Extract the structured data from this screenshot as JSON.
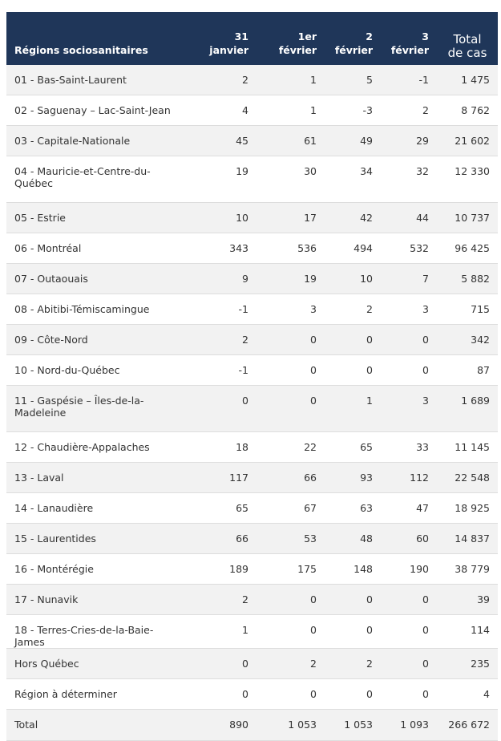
{
  "table": {
    "headers": {
      "region": "Régions sociosanitaires",
      "col1": [
        "31",
        "janvier"
      ],
      "col2": [
        "1er",
        "février"
      ],
      "col3": [
        "2",
        "février"
      ],
      "col4": [
        "3",
        "février"
      ],
      "total": [
        "Total",
        "de cas"
      ]
    },
    "rows": [
      {
        "region": "01 - Bas-Saint-Laurent",
        "v1": "2",
        "v2": "1",
        "v3": "5",
        "v4": "-1",
        "total": "1 475"
      },
      {
        "region": "02 - Saguenay – Lac-Saint-Jean",
        "v1": "4",
        "v2": "1",
        "v3": "-3",
        "v4": "2",
        "total": "8 762"
      },
      {
        "region": "03 - Capitale-Nationale",
        "v1": "45",
        "v2": "61",
        "v3": "49",
        "v4": "29",
        "total": "21 602"
      },
      {
        "region": "04 - Mauricie-et-Centre-du-Québec",
        "v1": "19",
        "v2": "30",
        "v3": "34",
        "v4": "32",
        "total": "12 330"
      },
      {
        "region": "05 - Estrie",
        "v1": "10",
        "v2": "17",
        "v3": "42",
        "v4": "44",
        "total": "10 737"
      },
      {
        "region": "06 - Montréal",
        "v1": "343",
        "v2": "536",
        "v3": "494",
        "v4": "532",
        "total": "96 425"
      },
      {
        "region": "07 - Outaouais",
        "v1": "9",
        "v2": "19",
        "v3": "10",
        "v4": "7",
        "total": "5 882"
      },
      {
        "region": "08 - Abitibi-Témiscamingue",
        "v1": "-1",
        "v2": "3",
        "v3": "2",
        "v4": "3",
        "total": "715"
      },
      {
        "region": "09 - Côte-Nord",
        "v1": "2",
        "v2": "0",
        "v3": "0",
        "v4": "0",
        "total": "342"
      },
      {
        "region": "10 - Nord-du-Québec",
        "v1": "-1",
        "v2": "0",
        "v3": "0",
        "v4": "0",
        "total": "87"
      },
      {
        "region": "11 - Gaspésie – Îles-de-la-Madeleine",
        "v1": "0",
        "v2": "0",
        "v3": "1",
        "v4": "3",
        "total": "1 689"
      },
      {
        "region": "12 - Chaudière-Appalaches",
        "v1": "18",
        "v2": "22",
        "v3": "65",
        "v4": "33",
        "total": "11 145"
      },
      {
        "region": "13 - Laval",
        "v1": "117",
        "v2": "66",
        "v3": "93",
        "v4": "112",
        "total": "22 548"
      },
      {
        "region": "14 - Lanaudière",
        "v1": "65",
        "v2": "67",
        "v3": "63",
        "v4": "47",
        "total": "18 925"
      },
      {
        "region": "15 - Laurentides",
        "v1": "66",
        "v2": "53",
        "v3": "48",
        "v4": "60",
        "total": "14 837"
      },
      {
        "region": "16 - Montérégie",
        "v1": "189",
        "v2": "175",
        "v3": "148",
        "v4": "190",
        "total": "38 779"
      },
      {
        "region": "17 - Nunavik",
        "v1": "2",
        "v2": "0",
        "v3": "0",
        "v4": "0",
        "total": "39"
      },
      {
        "region": "18 - Terres-Cries-de-la-Baie-James",
        "v1": "1",
        "v2": "0",
        "v3": "0",
        "v4": "0",
        "total": "114"
      },
      {
        "region": "Hors Québec",
        "v1": "0",
        "v2": "2",
        "v3": "2",
        "v4": "0",
        "total": "235"
      },
      {
        "region": "Région à déterminer",
        "v1": "0",
        "v2": "0",
        "v3": "0",
        "v4": "0",
        "total": "4"
      },
      {
        "region": "Total",
        "v1": "890",
        "v2": "1 053",
        "v3": "1 053",
        "v4": "1 093",
        "total": "266 672"
      }
    ]
  },
  "colors": {
    "header_bg": "#1f3659",
    "alt_row_bg": "#f2f2f2",
    "text": "#333333"
  }
}
